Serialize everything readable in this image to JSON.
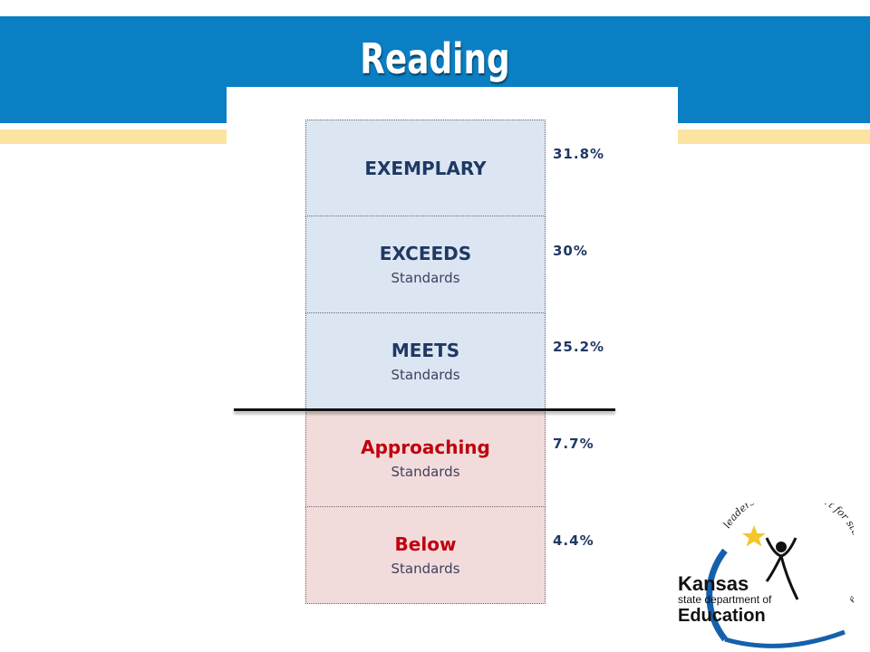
{
  "slide": {
    "title": "Reading"
  },
  "levels": [
    {
      "name": "EXEMPLARY",
      "sub": "",
      "percent": "31.8%"
    },
    {
      "name": "EXCEEDS",
      "sub": "Standards",
      "percent": "30%"
    },
    {
      "name": "MEETS",
      "sub": "Standards",
      "percent": "25.2%"
    },
    {
      "name": "Approaching",
      "sub": "Standards",
      "percent": "7.7%"
    },
    {
      "name": "Below",
      "sub": "Standards",
      "percent": "4.4%"
    }
  ],
  "logo": {
    "arc_text": "leadership and support for student learning",
    "line1": "Kansas",
    "line2": "state department of",
    "line3": "Education"
  },
  "colors": {
    "banner": "#0a7fc4",
    "stripe": "#fbe3a1",
    "meets_fill": "#dce6f2",
    "below_fill": "#f2dcdb",
    "meets_text": "#1f3864",
    "below_text": "#c0000f"
  }
}
